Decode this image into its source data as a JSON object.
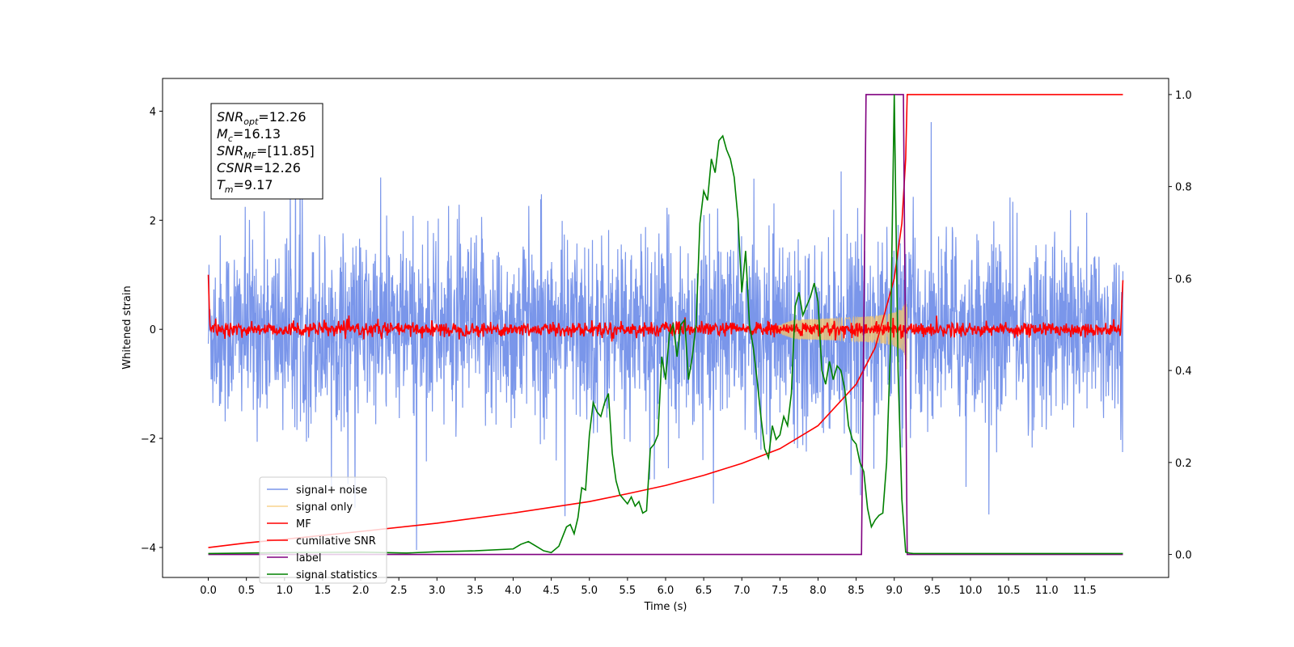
{
  "chart_data": {
    "type": "line",
    "xlabel": "Time (s)",
    "ylabel": "Whitened strain",
    "xlim": [
      -0.6,
      12.6
    ],
    "ylim": [
      -4.55,
      4.6
    ],
    "y2lim": [
      -0.05,
      1.035
    ],
    "x_ticks": [
      "0.0",
      "0.5",
      "1.0",
      "1.5",
      "2.0",
      "2.5",
      "3.0",
      "3.5",
      "4.0",
      "4.5",
      "5.0",
      "5.5",
      "6.0",
      "6.5",
      "7.0",
      "7.5",
      "8.0",
      "8.5",
      "9.0",
      "9.5",
      "10.0",
      "10.5",
      "11.0",
      "11.5"
    ],
    "y_ticks": [
      "−4",
      "−2",
      "0",
      "2",
      "4"
    ],
    "y2_ticks": [
      "0.0",
      "0.2",
      "0.4",
      "0.6",
      "0.8",
      "1.0"
    ],
    "legend_position": "lower-left",
    "annotation": [
      {
        "pre": "SNR",
        "sub": "opt",
        "post": "=12.26"
      },
      {
        "pre": "M",
        "sub": "c",
        "post": "=16.13"
      },
      {
        "pre": "SNR",
        "sub": "MF",
        "post": "=[11.85]"
      },
      {
        "pre": "CSNR",
        "sub": "",
        "post": "=12.26"
      },
      {
        "pre": "T",
        "sub": "m",
        "post": "=9.17"
      }
    ],
    "series": [
      {
        "name": "signal+ noise",
        "color": "#4169e1",
        "axis": "left",
        "description_values": {
          "x_range": [
            0,
            12
          ],
          "amplitude_range": [
            -4.1,
            3.8
          ]
        }
      },
      {
        "name": "signal only",
        "color": "#f5c46a",
        "axis": "left",
        "chirp_peak_time": 9.17,
        "chirp_peak_amplitude": 0.8
      },
      {
        "name": "MF",
        "color": "#ff0000",
        "axis": "left",
        "baseline": 0.0,
        "noise_amplitude": 0.12
      },
      {
        "name": "cumilative SNR",
        "color": "#ff0000",
        "axis": "right",
        "x": [
          0,
          0.5,
          1,
          2,
          3,
          4,
          5,
          5.5,
          6,
          6.5,
          7,
          7.5,
          8,
          8.5,
          8.75,
          9.0,
          9.1,
          9.15,
          9.17,
          12.0
        ],
        "y": [
          0.015,
          0.025,
          0.033,
          0.05,
          0.068,
          0.09,
          0.115,
          0.132,
          0.15,
          0.172,
          0.198,
          0.23,
          0.28,
          0.37,
          0.45,
          0.6,
          0.72,
          0.86,
          1.0,
          1.0
        ]
      },
      {
        "name": "label",
        "color": "#800080",
        "axis": "right",
        "x": [
          0,
          8.57,
          8.63,
          9.12,
          9.17,
          12.0
        ],
        "y": [
          0,
          0,
          1,
          1,
          0,
          0
        ]
      },
      {
        "name": "signal statistics",
        "color": "#008000",
        "axis": "right",
        "x": [
          0,
          1,
          2,
          2.6,
          3,
          3.5,
          4,
          4.1,
          4.2,
          4.3,
          4.4,
          4.5,
          4.6,
          4.7,
          4.75,
          4.8,
          4.85,
          4.9,
          4.95,
          5,
          5.05,
          5.1,
          5.15,
          5.2,
          5.25,
          5.3,
          5.35,
          5.4,
          5.45,
          5.5,
          5.55,
          5.6,
          5.65,
          5.7,
          5.75,
          5.8,
          5.85,
          5.9,
          5.95,
          6.0,
          6.05,
          6.1,
          6.15,
          6.2,
          6.25,
          6.3,
          6.35,
          6.4,
          6.45,
          6.5,
          6.55,
          6.6,
          6.65,
          6.7,
          6.75,
          6.8,
          6.85,
          6.9,
          6.95,
          7.0,
          7.05,
          7.1,
          7.15,
          7.2,
          7.25,
          7.3,
          7.35,
          7.4,
          7.45,
          7.5,
          7.55,
          7.6,
          7.65,
          7.7,
          7.75,
          7.8,
          7.85,
          7.9,
          7.95,
          8.0,
          8.05,
          8.1,
          8.15,
          8.2,
          8.25,
          8.3,
          8.35,
          8.4,
          8.45,
          8.5,
          8.55,
          8.6,
          8.65,
          8.7,
          8.75,
          8.8,
          8.85,
          8.9,
          8.95,
          9.0,
          9.05,
          9.1,
          9.15,
          9.2,
          9.25,
          9.3,
          9.5,
          10,
          11,
          12
        ],
        "y": [
          0.002,
          0.004,
          0.005,
          0.003,
          0.006,
          0.008,
          0.012,
          0.022,
          0.028,
          0.018,
          0.008,
          0.004,
          0.018,
          0.06,
          0.065,
          0.045,
          0.08,
          0.145,
          0.14,
          0.26,
          0.33,
          0.31,
          0.3,
          0.33,
          0.35,
          0.22,
          0.16,
          0.13,
          0.12,
          0.11,
          0.125,
          0.105,
          0.115,
          0.09,
          0.095,
          0.23,
          0.24,
          0.26,
          0.43,
          0.38,
          0.48,
          0.5,
          0.43,
          0.5,
          0.51,
          0.38,
          0.43,
          0.5,
          0.72,
          0.79,
          0.77,
          0.86,
          0.83,
          0.9,
          0.91,
          0.88,
          0.86,
          0.82,
          0.73,
          0.57,
          0.66,
          0.5,
          0.45,
          0.38,
          0.3,
          0.23,
          0.21,
          0.28,
          0.25,
          0.26,
          0.3,
          0.28,
          0.35,
          0.54,
          0.57,
          0.52,
          0.54,
          0.56,
          0.59,
          0.55,
          0.4,
          0.37,
          0.42,
          0.38,
          0.41,
          0.4,
          0.36,
          0.28,
          0.25,
          0.24,
          0.2,
          0.18,
          0.1,
          0.06,
          0.075,
          0.085,
          0.09,
          0.2,
          0.45,
          1.0,
          0.4,
          0.12,
          0.005,
          0.003,
          0.002,
          0.002,
          0.002,
          0.002,
          0.002,
          0.002
        ]
      }
    ]
  }
}
